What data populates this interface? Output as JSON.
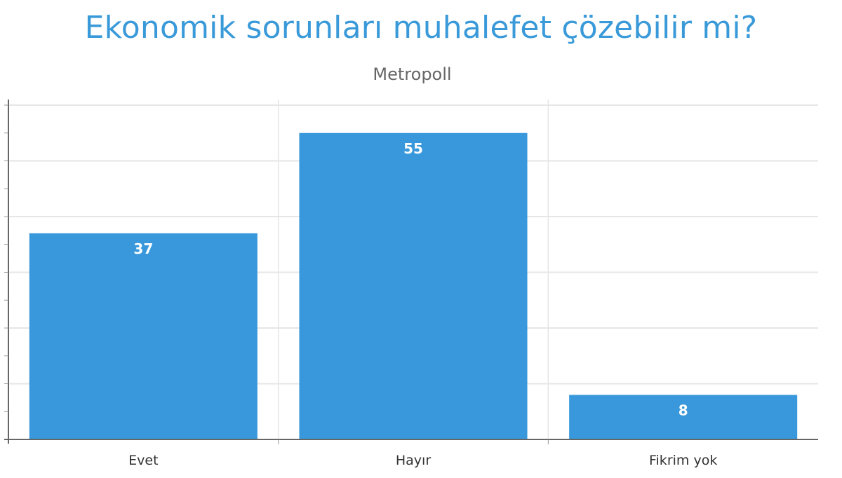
{
  "chart_data": {
    "type": "bar",
    "title": "Ekonomik sorunları muhalefet çözebilir mi?",
    "subtitle": "Metropoll",
    "categories": [
      "Evet",
      "Hayır",
      "Fikrim yok"
    ],
    "values": [
      37,
      55,
      8
    ],
    "ylim": [
      0,
      60
    ],
    "grid": true,
    "bar_color": "#3898db",
    "title_color": "#3a9ad9"
  }
}
